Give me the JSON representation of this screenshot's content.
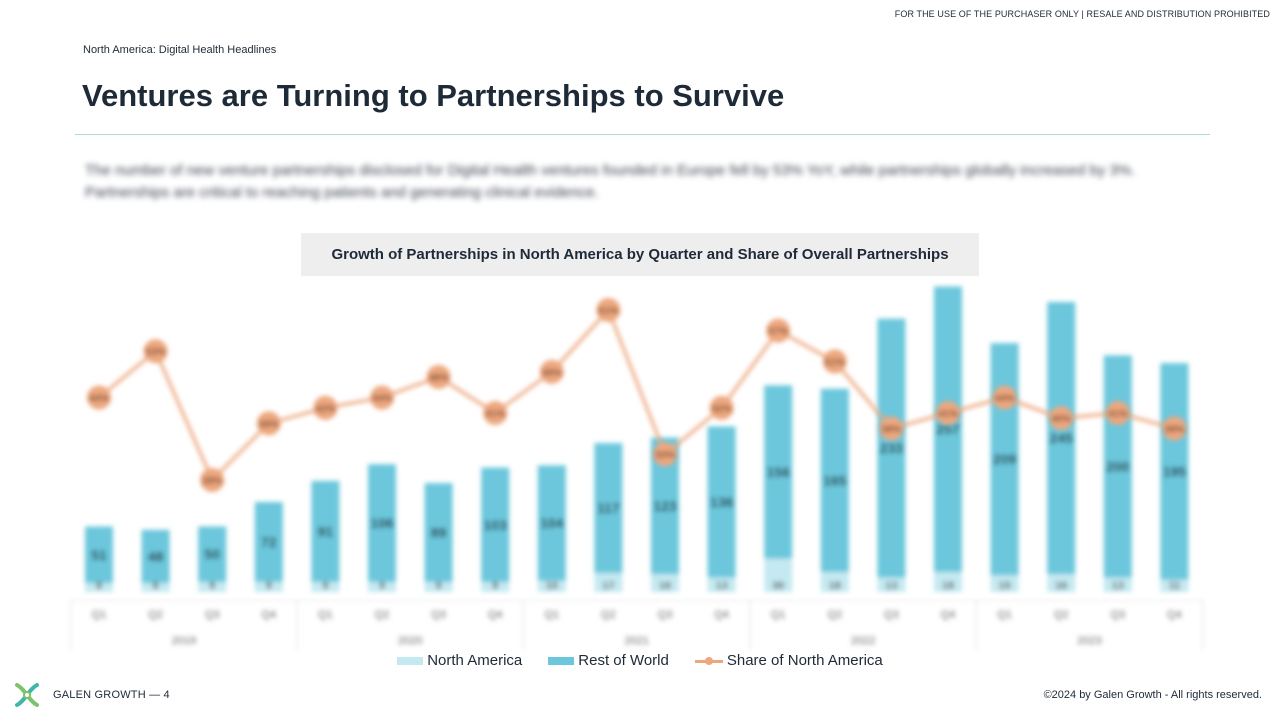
{
  "header": {
    "disclaimer": "FOR THE USE OF THE PURCHASER ONLY | RESALE AND DISTRIBUTION PROHIBITED",
    "section_label": "North America: Digital Health Headlines",
    "title": "Ventures are Turning to Partnerships to Survive"
  },
  "summary": "The number of new venture partnerships disclosed for Digital Health ventures founded in Europe fell by 53% YoY, while partnerships globally increased by 3%. Partnerships are critical to reaching patients and generating clinical evidence.",
  "colors": {
    "north_america": "#c4e9f1",
    "rest_of_world": "#6cc7dc",
    "share_line": "#eda77f",
    "accent_rule": "#a9ddd6",
    "title_text": "#1e2a38"
  },
  "chart_data": {
    "type": "bar",
    "title": "Growth of Partnerships in North America by Quarter and Share of Overall Partnerships",
    "categories": [
      "Q1",
      "Q2",
      "Q3",
      "Q4",
      "Q1",
      "Q2",
      "Q3",
      "Q4",
      "Q1",
      "Q2",
      "Q3",
      "Q4",
      "Q1",
      "Q2",
      "Q3",
      "Q4",
      "Q1",
      "Q2",
      "Q3",
      "Q4"
    ],
    "years": [
      "2019",
      "2020",
      "2021",
      "2022",
      "2023"
    ],
    "stacked": true,
    "series": [
      {
        "name": "North America",
        "type": "bar",
        "values": [
          8,
          8,
          9,
          9,
          9,
          9,
          9,
          9,
          10,
          17,
          16,
          13,
          30,
          18,
          13,
          18,
          15,
          16,
          13,
          11
        ]
      },
      {
        "name": "Rest of World",
        "type": "bar",
        "values": [
          51,
          48,
          50,
          72,
          91,
          106,
          89,
          103,
          104,
          117,
          123,
          136,
          156,
          165,
          233,
          257,
          209,
          245,
          200,
          195
        ]
      },
      {
        "name": "Share of North America",
        "type": "line",
        "values": [
          0.44,
          0.53,
          0.28,
          0.39,
          0.42,
          0.44,
          0.48,
          0.41,
          0.49,
          0.61,
          0.33,
          0.42,
          0.57,
          0.51,
          0.38,
          0.41,
          0.44,
          0.4,
          0.41,
          0.38
        ]
      }
    ],
    "ylim": [
      0,
      270
    ],
    "y2lim": [
      0,
      0.7
    ],
    "grid": false,
    "legend_position": "bottom"
  },
  "footer": {
    "brand": "GALEN GROWTH  —  4",
    "copyright": "©2024 by Galen Growth  - All rights reserved."
  }
}
